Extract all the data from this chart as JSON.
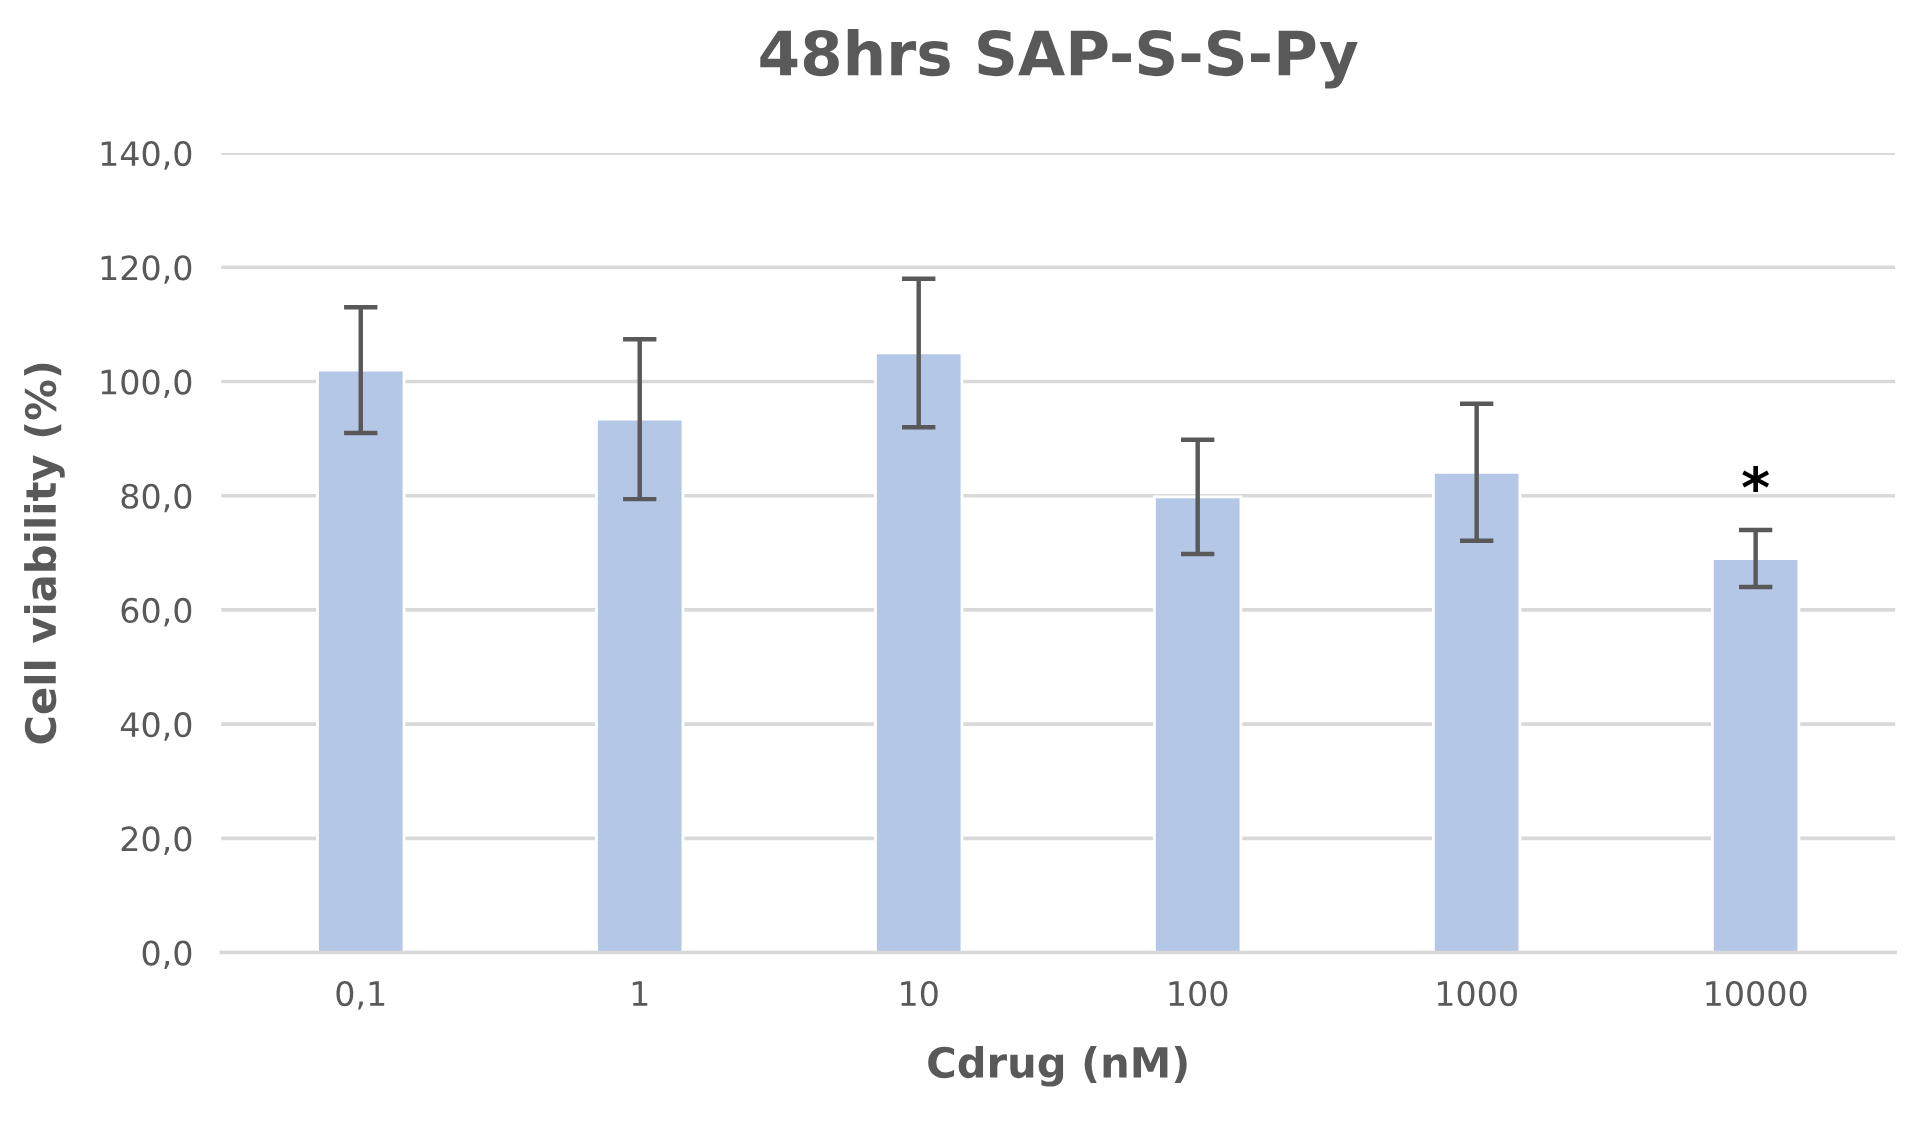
{
  "chart_data": {
    "type": "bar",
    "title": "48hrs SAP-S-S-Py",
    "xlabel": "Cdrug (nM)",
    "ylabel": "Cell viability (%)",
    "categories": [
      "0,1",
      "1",
      "10",
      "100",
      "1000",
      "10000"
    ],
    "values": [
      102.0,
      93.4,
      105.0,
      79.8,
      84.1,
      69.0
    ],
    "errors": [
      11,
      14,
      13,
      10,
      12,
      5
    ],
    "color": "#b4c7e7",
    "ylim": [
      0,
      140
    ],
    "yticks": [
      {
        "value": 0,
        "label": "0,0"
      },
      {
        "value": 20,
        "label": "20,0"
      },
      {
        "value": 40,
        "label": "40,0"
      },
      {
        "value": 60,
        "label": "60,0"
      },
      {
        "value": 80,
        "label": "80,0"
      },
      {
        "value": 100,
        "label": "100,0"
      },
      {
        "value": 120,
        "label": "120,0"
      },
      {
        "value": 140,
        "label": "140,0"
      }
    ],
    "grid": "y",
    "annotations": [
      {
        "text": "*",
        "x": "10000",
        "y": 74
      }
    ]
  }
}
